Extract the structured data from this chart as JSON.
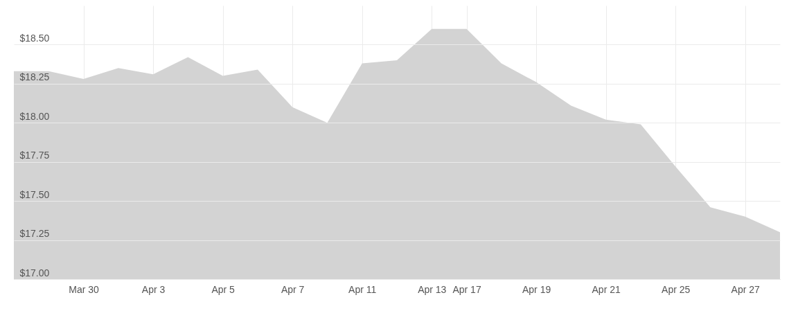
{
  "chart_data": {
    "type": "area",
    "categories": [
      null,
      null,
      "Mar 30",
      null,
      "Apr 3",
      null,
      "Apr 5",
      null,
      "Apr 7",
      null,
      "Apr 11",
      null,
      "Apr 13",
      "Apr 17",
      null,
      "Apr 19",
      null,
      "Apr 21",
      null,
      "Apr 25",
      null,
      "Apr 27",
      null
    ],
    "series": [
      {
        "color": "#d3d3d3",
        "values": [
          18.33,
          18.33,
          18.28,
          18.35,
          18.31,
          18.42,
          18.3,
          18.34,
          18.1,
          18.0,
          18.38,
          18.4,
          18.6,
          18.6,
          18.38,
          18.26,
          18.11,
          18.02,
          17.99,
          17.72,
          17.46,
          17.4,
          17.3
        ]
      }
    ],
    "ylim": [
      17,
      18.75
    ],
    "yticks": [
      {
        "value": 17,
        "label": "$17.00"
      },
      {
        "value": 17.25,
        "label": "$17.25"
      },
      {
        "value": 17.5,
        "label": "$17.50"
      },
      {
        "value": 17.75,
        "label": "$17.75"
      },
      {
        "value": 18,
        "label": "$18.00"
      },
      {
        "value": 18.25,
        "label": "$18.25"
      },
      {
        "value": 18.5,
        "label": "$18.50"
      }
    ],
    "grid": true
  }
}
